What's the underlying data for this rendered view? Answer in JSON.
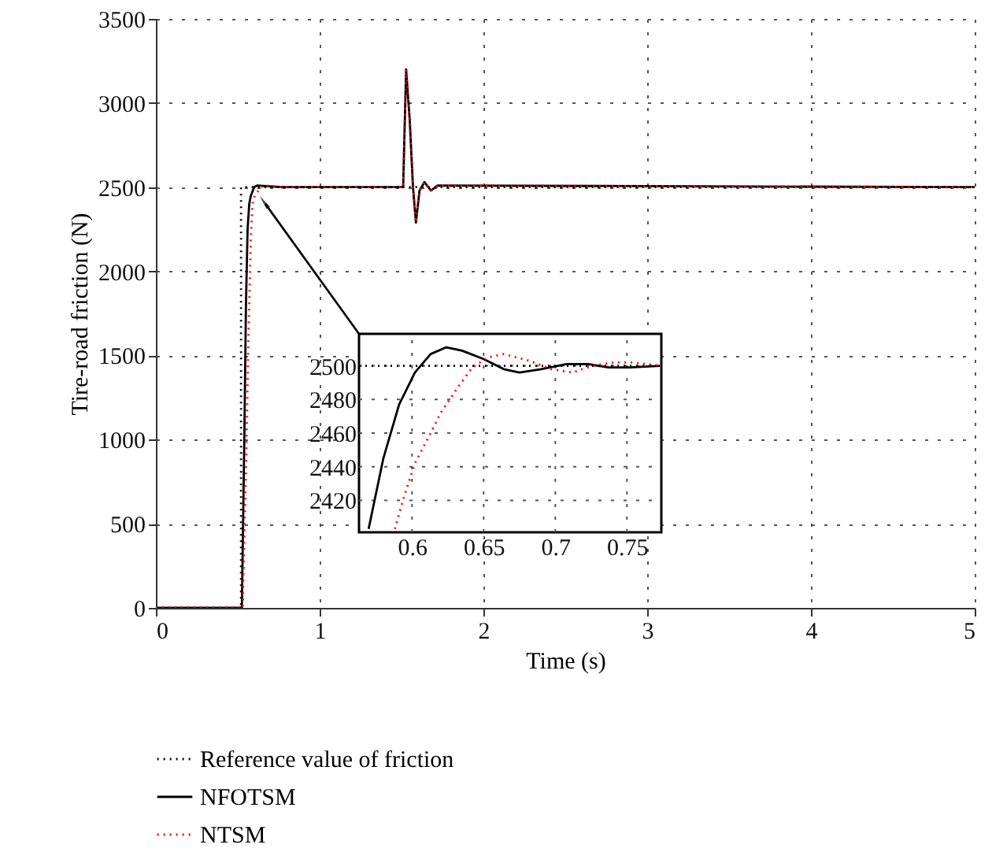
{
  "chart_data": [
    {
      "type": "line",
      "xlabel": "Time (s)",
      "ylabel": "Tire-road friction (N)",
      "xlim": [
        0,
        5
      ],
      "ylim": [
        0,
        3500
      ],
      "xticks": [
        0,
        1,
        2,
        3,
        4,
        5
      ],
      "yticks": [
        0,
        500,
        1000,
        1500,
        2000,
        2500,
        3000,
        3500
      ],
      "grid": true,
      "legend": "bottom",
      "series": [
        {
          "name": "Reference value of friction",
          "color": "#000000",
          "line_style": "dotted",
          "x": [
            0,
            0.52,
            0.52,
            5
          ],
          "values": [
            0,
            0,
            2500,
            2500
          ]
        },
        {
          "name": "NFOTSM",
          "color": "#000000",
          "line_style": "solid",
          "x": [
            0,
            0.525,
            0.54,
            0.55,
            0.56,
            0.57,
            0.58,
            0.6,
            0.62,
            0.77,
            1.51,
            1.528,
            1.55,
            1.57,
            1.588,
            1.61,
            1.64,
            1.68,
            1.72,
            5
          ],
          "values": [
            0,
            0,
            1000,
            1800,
            2250,
            2400,
            2450,
            2500,
            2510,
            2500,
            2500,
            3200,
            2900,
            2500,
            2290,
            2480,
            2530,
            2480,
            2510,
            2500
          ]
        },
        {
          "name": "NTSM",
          "color": "#ff0000",
          "line_style": "dotted",
          "x": [
            0,
            0.53,
            0.55,
            0.565,
            0.58,
            0.59,
            0.6,
            0.62,
            0.64,
            0.66,
            0.77,
            1.51,
            1.528,
            1.55,
            1.57,
            1.588,
            1.61,
            1.64,
            1.68,
            1.72,
            5
          ],
          "values": [
            0,
            0,
            800,
            1600,
            2200,
            2400,
            2440,
            2470,
            2500,
            2510,
            2500,
            2500,
            3200,
            2900,
            2500,
            2290,
            2480,
            2530,
            2480,
            2510,
            2500
          ]
        }
      ]
    },
    {
      "type": "line",
      "xlim": [
        0.563,
        0.774
      ],
      "ylim": [
        2401,
        2519
      ],
      "xticks": [
        0.6,
        0.65,
        0.7,
        0.75
      ],
      "yticks": [
        2420,
        2440,
        2460,
        2480,
        2500
      ],
      "grid": true,
      "series": [
        {
          "color": "#000000",
          "line_style": "dotted",
          "x": [
            0.563,
            0.774
          ],
          "values": [
            2500,
            2500
          ]
        },
        {
          "color": "#000000",
          "line_style": "solid",
          "x": [
            0.5697,
            0.58,
            0.591,
            0.602,
            0.613,
            0.624,
            0.635,
            0.65,
            0.664,
            0.675,
            0.69,
            0.708,
            0.723,
            0.737,
            0.752,
            0.773
          ],
          "values": [
            2403,
            2445,
            2477,
            2496,
            2507,
            2511,
            2509,
            2504,
            2498,
            2496,
            2498,
            2501,
            2501,
            2499,
            2499,
            2500
          ]
        },
        {
          "color": "#ff0000",
          "line_style": "dotted",
          "x": [
            0.588,
            0.594,
            0.602,
            0.613,
            0.62,
            0.631,
            0.642,
            0.653,
            0.664,
            0.682,
            0.697,
            0.712,
            0.726,
            0.741,
            0.755,
            0.773
          ],
          "values": [
            2403,
            2421,
            2442,
            2460,
            2472,
            2486,
            2499,
            2505,
            2507,
            2503,
            2498,
            2496,
            2500,
            2502,
            2502,
            2500
          ]
        }
      ]
    }
  ]
}
